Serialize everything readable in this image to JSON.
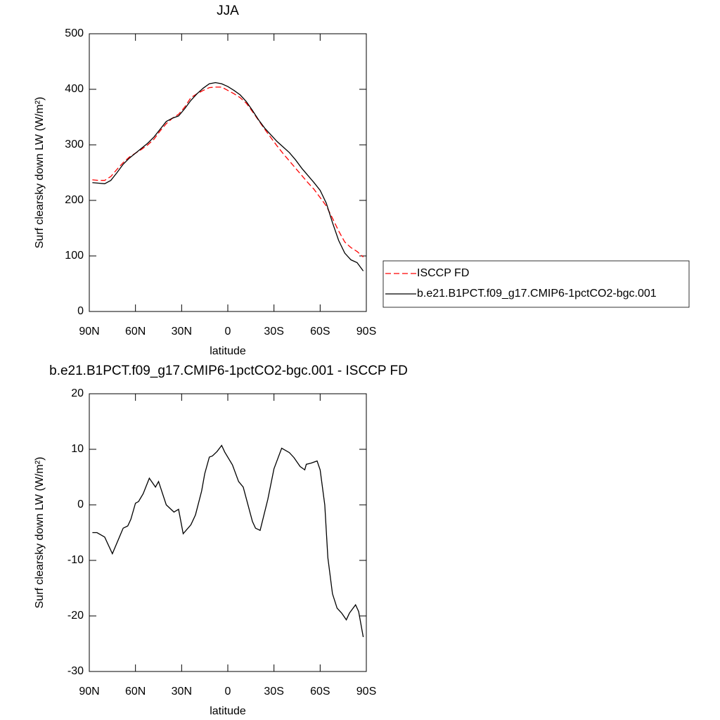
{
  "chart_data": [
    {
      "type": "line",
      "title": "JJA",
      "x_label": "latitude",
      "y_label": "Surf clearsky down LW (W/m²)",
      "x": [
        88,
        84,
        80,
        76,
        72,
        68,
        64,
        60,
        56,
        52,
        48,
        44,
        40,
        36,
        32,
        28,
        24,
        20,
        16,
        12,
        8,
        4,
        0,
        -4,
        -8,
        -12,
        -16,
        -20,
        -24,
        -28,
        -32,
        -36,
        -40,
        -44,
        -48,
        -52,
        -56,
        -60,
        -64,
        -68,
        -72,
        -76,
        -80,
        -84,
        -88
      ],
      "series": [
        {
          "name": "ISCCP FD",
          "color": "#ff0000",
          "dashed": true,
          "values": [
            237,
            236,
            236,
            243,
            256,
            268,
            278,
            285,
            292,
            300,
            310,
            325,
            338,
            348,
            355,
            368,
            385,
            392,
            398,
            403,
            404,
            404,
            398,
            392,
            385,
            375,
            360,
            344,
            328,
            313,
            298,
            284,
            271,
            258,
            245,
            232,
            220,
            205,
            190,
            168,
            145,
            125,
            115,
            108,
            98
          ]
        },
        {
          "name": "b.e21.B1PCT.f09_g17.CMIP6-1pctCO2-bgc.001",
          "color": "#000000",
          "dashed": false,
          "values": [
            232,
            231,
            230,
            236,
            250,
            265,
            276,
            285,
            294,
            303,
            314,
            328,
            342,
            348,
            352,
            365,
            380,
            392,
            402,
            410,
            412,
            410,
            405,
            398,
            390,
            378,
            362,
            345,
            330,
            318,
            306,
            296,
            286,
            273,
            258,
            245,
            232,
            218,
            195,
            160,
            128,
            105,
            93,
            88,
            73
          ]
        }
      ],
      "xlim": [
        90,
        -90
      ],
      "xticks": [
        {
          "value": 90,
          "label": "90N"
        },
        {
          "value": 60,
          "label": "60N"
        },
        {
          "value": 30,
          "label": "30N"
        },
        0,
        {
          "value": -30,
          "label": "30S"
        },
        {
          "value": -60,
          "label": "60S"
        },
        {
          "value": -90,
          "label": "90S"
        }
      ],
      "ylim": [
        0,
        500
      ],
      "yticks": [
        0,
        100,
        200,
        300,
        400,
        500
      ],
      "grid": false,
      "legend": "right"
    },
    {
      "type": "line",
      "title": "b.e21.B1PCT.f09_g17.CMIP6-1pctCO2-bgc.001 - ISCCP FD",
      "x_label": "latitude",
      "y_label": "Surf clearsky down LW (W/m²)",
      "x": [
        88,
        85,
        80,
        75,
        68,
        65,
        63,
        60,
        58,
        55,
        51,
        47,
        45,
        40,
        35,
        32,
        29,
        24,
        21,
        17,
        15,
        12,
        10,
        7,
        4,
        2,
        -3,
        -7,
        -10,
        -16,
        -18,
        -21,
        -26,
        -30,
        -35,
        -40,
        -43,
        -47,
        -50,
        -51,
        -54,
        -58,
        -60,
        -63,
        -65,
        -68,
        -71,
        -74,
        -77,
        -79,
        -83,
        -85,
        -88
      ],
      "series": [
        {
          "color": "#000000",
          "dashed": false,
          "values": [
            -5,
            -5,
            -5.8,
            -8.8,
            -4.2,
            -3.8,
            -2.6,
            0.3,
            0.6,
            2,
            4.8,
            3.2,
            4.2,
            0,
            -1.3,
            -0.8,
            -5.2,
            -3.6,
            -1.8,
            2.5,
            5.6,
            8.6,
            8.8,
            9.6,
            10.7,
            9.5,
            7.2,
            4.2,
            3.2,
            -3,
            -4.2,
            -4.6,
            1,
            6.5,
            10.2,
            9.4,
            8.5,
            6.9,
            6.3,
            7.3,
            7.5,
            7.9,
            6.3,
            0,
            -9.5,
            -16,
            -18.6,
            -19.5,
            -20.7,
            -19.5,
            -18,
            -19.2,
            -23.8
          ]
        }
      ],
      "xlim": [
        90,
        -90
      ],
      "xticks": [
        {
          "value": 90,
          "label": "90N"
        },
        {
          "value": 60,
          "label": "60N"
        },
        {
          "value": 30,
          "label": "30N"
        },
        0,
        {
          "value": -30,
          "label": "30S"
        },
        {
          "value": -60,
          "label": "60S"
        },
        {
          "value": -90,
          "label": "90S"
        }
      ],
      "ylim": [
        -30,
        20
      ],
      "yticks": [
        -30,
        -20,
        -10,
        0,
        10,
        20
      ],
      "grid": false
    }
  ]
}
